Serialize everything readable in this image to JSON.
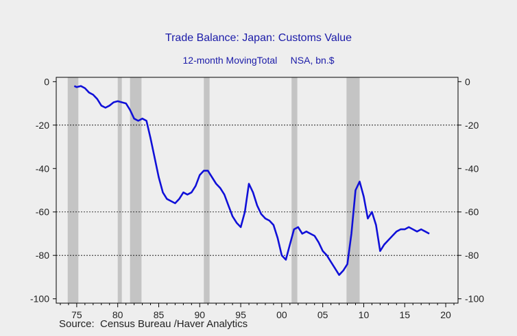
{
  "chart_data": {
    "type": "line",
    "title": "Trade Balance: Japan: Customs Value",
    "subtitle": "12-month MovingTotal     NSA, bn.$",
    "source": "Source:  Census Bureau /Haver Analytics",
    "xlim": [
      1972.5,
      2021.5
    ],
    "ylim": [
      -102,
      2
    ],
    "x_ticks": [
      1975,
      1980,
      1985,
      1990,
      1995,
      2000,
      2005,
      2010,
      2015,
      2020
    ],
    "x_tick_labels": [
      "75",
      "80",
      "85",
      "90",
      "95",
      "00",
      "05",
      "10",
      "15",
      "20"
    ],
    "y_ticks": [
      0,
      -20,
      -40,
      -60,
      -80,
      -100
    ],
    "y_tick_labels_left": [
      "0",
      "-20",
      "-40",
      "-60",
      "-80",
      "-100"
    ],
    "y_tick_labels_right": [
      "0",
      "-20",
      "-40",
      "-60",
      "-80",
      "-100"
    ],
    "gridlines": [
      -20,
      -60,
      -80
    ],
    "recessions": [
      [
        1973.9,
        1975.2
      ],
      [
        1980.0,
        1980.5
      ],
      [
        1981.5,
        1982.9
      ],
      [
        1990.5,
        1991.2
      ],
      [
        2001.2,
        2001.9
      ],
      [
        2007.9,
        2009.5
      ]
    ],
    "colors": {
      "line": "#1010d8",
      "recession": "#c4c4c4",
      "text": "#1a1aa8"
    },
    "series": [
      {
        "x": [
          1974.7,
          1975.0,
          1975.5,
          1976.0,
          1976.5,
          1977.0,
          1977.5,
          1978.0,
          1978.5,
          1979.0,
          1979.5,
          1980.0,
          1980.5,
          1981.0,
          1981.5,
          1982.0,
          1982.5,
          1983.0,
          1983.5,
          1984.0,
          1984.5,
          1985.0,
          1985.5,
          1986.0,
          1986.5,
          1987.0,
          1987.5,
          1988.0,
          1988.5,
          1989.0,
          1989.5,
          1990.0,
          1990.5,
          1991.0,
          1991.5,
          1992.0,
          1992.5,
          1993.0,
          1993.5,
          1994.0,
          1994.5,
          1995.0,
          1995.5,
          1996.0,
          1996.5,
          1997.0,
          1997.5,
          1998.0,
          1998.5,
          1999.0,
          1999.5,
          2000.0,
          2000.5,
          2001.0,
          2001.5,
          2002.0,
          2002.5,
          2003.0,
          2003.5,
          2004.0,
          2004.5,
          2005.0,
          2005.5,
          2006.0,
          2006.5,
          2007.0,
          2007.5,
          2008.0,
          2008.5,
          2009.0,
          2009.5,
          2010.0,
          2010.5,
          2011.0,
          2011.5,
          2012.0,
          2012.5,
          2013.0,
          2013.5,
          2014.0,
          2014.5,
          2015.0,
          2015.5,
          2016.0,
          2016.5,
          2017.0,
          2017.5,
          2018.0
        ],
        "values": [
          -2,
          -2.5,
          -2,
          -3,
          -5,
          -6,
          -8,
          -11,
          -12,
          -11,
          -9.5,
          -9,
          -9.5,
          -10,
          -13,
          -17,
          -18,
          -17,
          -18,
          -26,
          -35,
          -44,
          -51,
          -54,
          -55,
          -56,
          -54,
          -51,
          -52,
          -51,
          -48,
          -43,
          -41,
          -41,
          -44,
          -47,
          -49,
          -52,
          -57,
          -62,
          -65,
          -67,
          -60,
          -47,
          -51,
          -57,
          -61,
          -63,
          -64,
          -66,
          -72,
          -80,
          -82,
          -75,
          -68,
          -67,
          -70,
          -69,
          -70,
          -71,
          -74,
          -78,
          -80,
          -83,
          -86,
          -89,
          -87,
          -84,
          -70,
          -50,
          -46,
          -53,
          -63,
          -60,
          -66,
          -78,
          -75,
          -73,
          -71,
          -69,
          -68,
          -68,
          -67,
          -68,
          -69,
          -68,
          -69,
          -70
        ]
      }
    ]
  }
}
